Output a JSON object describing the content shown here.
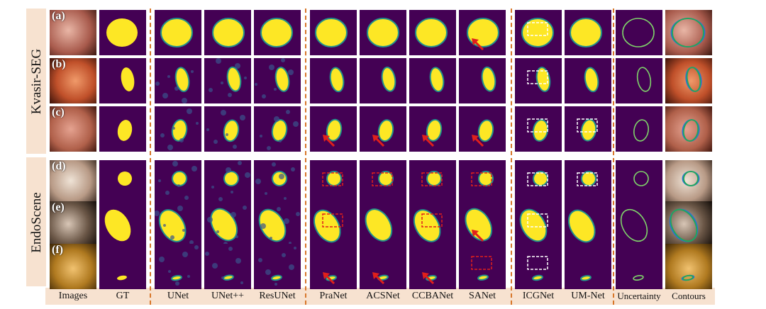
{
  "figure": {
    "columns": [
      "Images",
      "GT",
      "UNet",
      "UNet++",
      "ResUNet",
      "PraNet",
      "ACSNet",
      "CCBANet",
      "SANet",
      "ICGNet",
      "UM-Net",
      "Uncertainty",
      "Contours"
    ],
    "datasets": [
      {
        "name": "Kvasir-SEG",
        "rows": [
          "(a)",
          "(b)",
          "(c)"
        ]
      },
      {
        "name": "EndoScene",
        "rows": [
          "(d)",
          "(e)",
          "(f)"
        ]
      }
    ]
  },
  "colors": {
    "background": "#440154",
    "mask": "#fde725",
    "edge": "#21918c",
    "band": "#f7e2d0",
    "separator": "#d7762a",
    "arrow": "#e0201b"
  }
}
